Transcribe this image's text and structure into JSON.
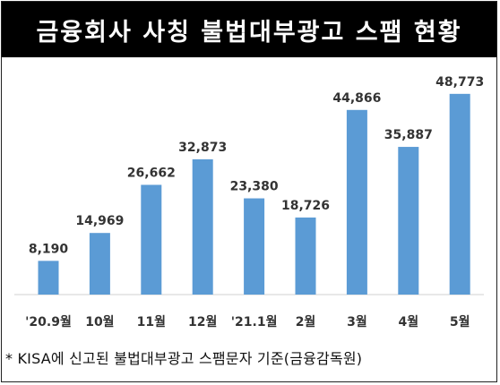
{
  "title": "금융회사 사칭 불법대부광고 스팸 현황",
  "footnote": "* KISA에 신고된 불법대부광고 스팸문자 기준(금융감독원)",
  "colors": {
    "bar": "#5B9BD5",
    "title_bg": "#000000",
    "title_text": "#ffffff"
  },
  "chart_data": {
    "type": "bar",
    "title": "금융회사 사칭 불법대부광고 스팸 현황",
    "categories": [
      "'20.9월",
      "10월",
      "11월",
      "12월",
      "'21.1월",
      "2월",
      "3월",
      "4월",
      "5월"
    ],
    "values": [
      8190,
      14969,
      26662,
      32873,
      23380,
      18726,
      44866,
      35887,
      48773
    ],
    "value_labels": [
      "8,190",
      "14,969",
      "26,662",
      "32,873",
      "23,380",
      "18,726",
      "44,866",
      "35,887",
      "48,773"
    ],
    "xlabel": "",
    "ylabel": "",
    "ylim": [
      0,
      52000
    ],
    "grid": false,
    "legend": "none"
  }
}
